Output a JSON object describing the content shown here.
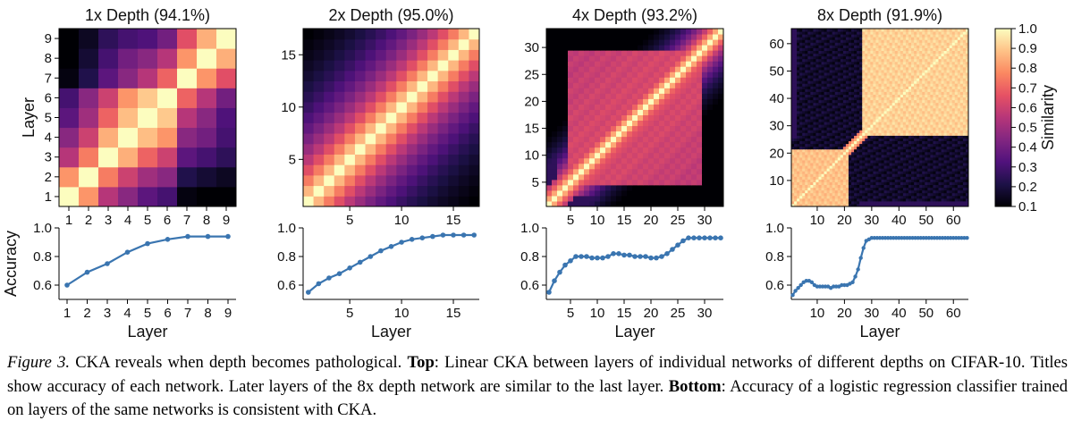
{
  "chart_data": [
    {
      "type": "heatmap",
      "title": "1x Depth (94.1%)",
      "n_layers": 9,
      "xlabel": "",
      "ylabel": "Layer",
      "xticks": [
        1,
        2,
        3,
        4,
        5,
        6,
        7,
        8,
        9
      ],
      "yticks": [
        1,
        2,
        3,
        4,
        5,
        6,
        7,
        8,
        9
      ],
      "matrix": [
        [
          1.0,
          0.8,
          0.55,
          0.45,
          0.35,
          0.3,
          0.12,
          0.1,
          0.1
        ],
        [
          0.8,
          1.0,
          0.75,
          0.6,
          0.5,
          0.45,
          0.22,
          0.18,
          0.15
        ],
        [
          0.55,
          0.75,
          1.0,
          0.85,
          0.7,
          0.6,
          0.35,
          0.3,
          0.25
        ],
        [
          0.45,
          0.6,
          0.85,
          1.0,
          0.88,
          0.8,
          0.45,
          0.4,
          0.3
        ],
        [
          0.35,
          0.5,
          0.7,
          0.88,
          1.0,
          0.9,
          0.55,
          0.45,
          0.32
        ],
        [
          0.3,
          0.45,
          0.6,
          0.8,
          0.9,
          1.0,
          0.7,
          0.55,
          0.4
        ],
        [
          0.12,
          0.22,
          0.35,
          0.45,
          0.55,
          0.7,
          1.0,
          0.8,
          0.65
        ],
        [
          0.1,
          0.18,
          0.3,
          0.4,
          0.45,
          0.55,
          0.8,
          1.0,
          0.85
        ],
        [
          0.1,
          0.15,
          0.25,
          0.3,
          0.32,
          0.4,
          0.65,
          0.85,
          1.0
        ]
      ]
    },
    {
      "type": "heatmap",
      "title": "2x Depth (95.0%)",
      "n_layers": 17,
      "xlabel": "",
      "ylabel": "",
      "xticks": [
        5,
        10,
        15
      ],
      "yticks": [
        5,
        10,
        15
      ],
      "pattern": "decay",
      "decay_params": {
        "base": 1.0,
        "rate": 0.09,
        "floor": 0.08
      }
    },
    {
      "type": "heatmap",
      "title": "4x Depth (93.2%)",
      "n_layers": 33,
      "xlabel": "",
      "ylabel": "",
      "xticks": [
        5,
        10,
        15,
        20,
        25,
        30
      ],
      "yticks": [
        5,
        10,
        15,
        20,
        25,
        30
      ],
      "pattern": "block_middle",
      "blocks": [
        {
          "from": 5,
          "to": 29,
          "level": 0.62
        }
      ]
    },
    {
      "type": "heatmap",
      "title": "8x Depth (91.9%)",
      "n_layers": 65,
      "xlabel": "",
      "ylabel": "",
      "xticks": [
        10,
        20,
        30,
        40,
        50,
        60
      ],
      "yticks": [
        10,
        20,
        30,
        40,
        50,
        60
      ],
      "pattern": "two_blocks",
      "blocks": [
        {
          "from": 1,
          "to": 21,
          "level": 0.85
        },
        {
          "from": 27,
          "to": 65,
          "level": 0.88
        }
      ],
      "cross_level": 0.12
    },
    {
      "type": "line",
      "xlabel": "Layer",
      "ylabel": "Accuracy",
      "x": [
        1,
        2,
        3,
        4,
        5,
        6,
        7,
        8,
        9
      ],
      "y": [
        0.6,
        0.69,
        0.75,
        0.83,
        0.89,
        0.92,
        0.94,
        0.94,
        0.94
      ],
      "ylim": [
        0.5,
        1.0
      ],
      "yticks": [
        "0.6",
        "0.8",
        "1.0"
      ],
      "xticks": [
        1,
        2,
        3,
        4,
        5,
        6,
        7,
        8,
        9
      ],
      "xlim": [
        0.6,
        9.4
      ]
    },
    {
      "type": "line",
      "xlabel": "Layer",
      "ylabel": "",
      "x": [
        1,
        2,
        3,
        4,
        5,
        6,
        7,
        8,
        9,
        10,
        11,
        12,
        13,
        14,
        15,
        16,
        17
      ],
      "y": [
        0.55,
        0.61,
        0.65,
        0.68,
        0.72,
        0.76,
        0.8,
        0.84,
        0.87,
        0.9,
        0.92,
        0.93,
        0.94,
        0.95,
        0.95,
        0.95,
        0.95
      ],
      "ylim": [
        0.5,
        1.0
      ],
      "yticks": [
        "0.6",
        "0.8",
        "1.0"
      ],
      "xticks": [
        5,
        10,
        15
      ],
      "xlim": [
        0.5,
        17.5
      ]
    },
    {
      "type": "line",
      "xlabel": "Layer",
      "ylabel": "",
      "x": [
        1,
        2,
        3,
        4,
        5,
        6,
        7,
        8,
        9,
        10,
        11,
        12,
        13,
        14,
        15,
        16,
        17,
        18,
        19,
        20,
        21,
        22,
        23,
        24,
        25,
        26,
        27,
        28,
        29,
        30,
        31,
        32,
        33
      ],
      "y": [
        0.55,
        0.63,
        0.69,
        0.74,
        0.77,
        0.8,
        0.8,
        0.8,
        0.79,
        0.79,
        0.79,
        0.8,
        0.82,
        0.82,
        0.81,
        0.81,
        0.8,
        0.8,
        0.8,
        0.79,
        0.79,
        0.8,
        0.82,
        0.85,
        0.88,
        0.91,
        0.93,
        0.93,
        0.93,
        0.93,
        0.93,
        0.93,
        0.93
      ],
      "ylim": [
        0.5,
        1.0
      ],
      "yticks": [
        "0.6",
        "0.8",
        "1.0"
      ],
      "xticks": [
        5,
        10,
        15,
        20,
        25,
        30
      ],
      "xlim": [
        0.5,
        33.5
      ]
    },
    {
      "type": "line",
      "xlabel": "Layer",
      "ylabel": "",
      "x_from": 1,
      "x_to": 65,
      "y": [
        0.53,
        0.56,
        0.58,
        0.6,
        0.62,
        0.63,
        0.63,
        0.62,
        0.6,
        0.59,
        0.59,
        0.59,
        0.59,
        0.59,
        0.58,
        0.59,
        0.59,
        0.59,
        0.6,
        0.6,
        0.6,
        0.61,
        0.62,
        0.66,
        0.71,
        0.79,
        0.86,
        0.91,
        0.92,
        0.93,
        0.93,
        0.93,
        0.93,
        0.93,
        0.93,
        0.93,
        0.93,
        0.93,
        0.93,
        0.93,
        0.93,
        0.93,
        0.93,
        0.93,
        0.93,
        0.93,
        0.93,
        0.93,
        0.93,
        0.93,
        0.93,
        0.93,
        0.93,
        0.93,
        0.93,
        0.93,
        0.93,
        0.93,
        0.93,
        0.93,
        0.93,
        0.93,
        0.93,
        0.93,
        0.93
      ],
      "ylim": [
        0.5,
        1.0
      ],
      "yticks": [
        "0.6",
        "0.8",
        "1.0"
      ],
      "xticks": [
        10,
        20,
        30,
        40,
        50,
        60
      ],
      "xlim": [
        0.5,
        65.5
      ]
    }
  ],
  "colorbar": {
    "label": "Similarity",
    "ticks": [
      "1.0",
      "0.9",
      "0.8",
      "0.7",
      "0.6",
      "0.5",
      "0.4",
      "0.3",
      "0.2",
      "0.1"
    ],
    "range": [
      0.1,
      1.0
    ],
    "colors": [
      "#000004",
      "#1d1147",
      "#51127c",
      "#822681",
      "#b63679",
      "#e65164",
      "#fb8861",
      "#fec287",
      "#fcfdbf"
    ]
  },
  "caption": {
    "label": "Figure 3.",
    "text1": " CKA reveals when depth becomes pathological. ",
    "bold1": "Top",
    "text2": ": Linear CKA between layers of individual networks of different depths on CIFAR-10. Titles show accuracy of each network. Later layers of the 8x depth network are similar to the last layer. ",
    "bold2": "Bottom",
    "text3": ": Accuracy of a logistic regression classifier trained on layers of the same networks is consistent with CKA."
  },
  "colors": {
    "line": "#3a75b0",
    "axis": "#000000"
  }
}
